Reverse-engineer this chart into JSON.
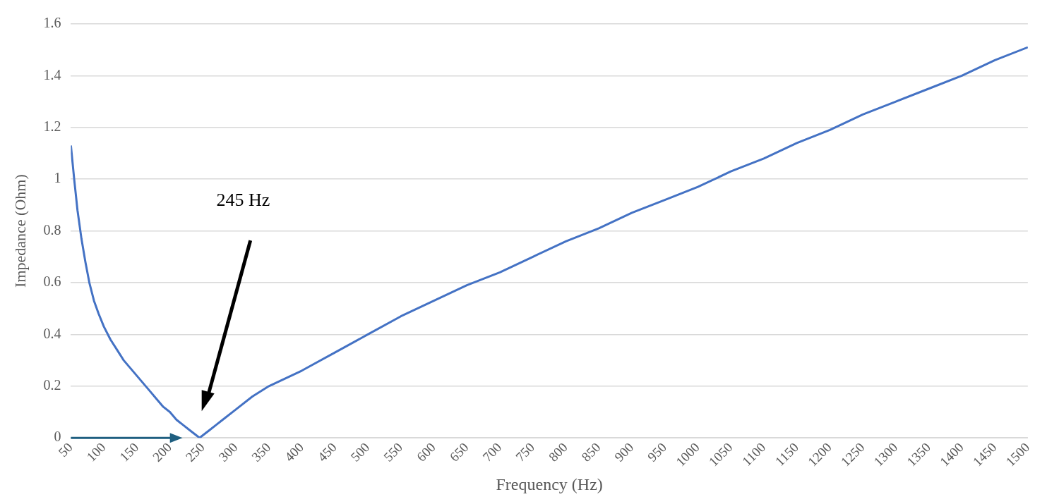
{
  "chart_data": {
    "type": "line",
    "xlabel": "Frequency (Hz)",
    "ylabel": "Impedance (Ohm)",
    "x": [
      50,
      55,
      60,
      66,
      72,
      78,
      85,
      92,
      100,
      110,
      120,
      130,
      140,
      150,
      160,
      170,
      180,
      190,
      200,
      210,
      220,
      230,
      240,
      245,
      250,
      260,
      270,
      280,
      300,
      325,
      350,
      400,
      450,
      500,
      550,
      600,
      650,
      700,
      750,
      800,
      850,
      900,
      950,
      1000,
      1050,
      1100,
      1150,
      1200,
      1250,
      1300,
      1350,
      1400,
      1450,
      1500
    ],
    "series": [
      {
        "color": "#4472c4",
        "values": [
          1.13,
          1.0,
          0.88,
          0.77,
          0.68,
          0.6,
          0.53,
          0.48,
          0.43,
          0.38,
          0.34,
          0.3,
          0.27,
          0.24,
          0.21,
          0.18,
          0.15,
          0.12,
          0.1,
          0.07,
          0.05,
          0.03,
          0.01,
          0.0,
          0.01,
          0.03,
          0.05,
          0.07,
          0.11,
          0.16,
          0.2,
          0.26,
          0.33,
          0.4,
          0.47,
          0.53,
          0.59,
          0.64,
          0.7,
          0.76,
          0.81,
          0.87,
          0.92,
          0.97,
          1.03,
          1.08,
          1.14,
          1.19,
          1.25,
          1.3,
          1.35,
          1.4,
          1.46,
          1.51
        ]
      }
    ],
    "xlim": [
      50,
      1500
    ],
    "xticks": [
      50,
      100,
      150,
      200,
      250,
      300,
      350,
      400,
      450,
      500,
      550,
      600,
      650,
      700,
      750,
      800,
      850,
      900,
      950,
      1000,
      1050,
      1100,
      1150,
      1200,
      1250,
      1300,
      1350,
      1400,
      1450,
      1500
    ],
    "ylim": [
      0,
      1.6
    ],
    "yticks": [
      0,
      0.2,
      0.4,
      0.6,
      0.8,
      1,
      1.2,
      1.4,
      1.6
    ],
    "grid": "y",
    "legend": false,
    "marker": "none",
    "line_style": "solid",
    "annotations": [
      "245 Hz"
    ]
  }
}
